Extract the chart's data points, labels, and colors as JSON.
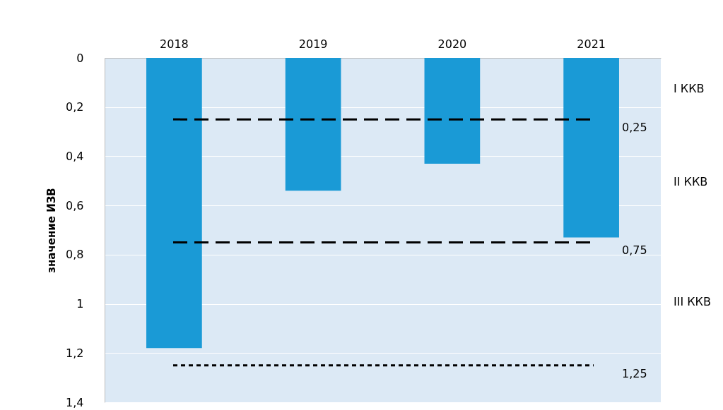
{
  "chart_data": {
    "type": "bar",
    "ylabel": "значение ИЗВ",
    "categories": [
      "2018",
      "2019",
      "2020",
      "2021"
    ],
    "values": [
      1.18,
      0.54,
      0.43,
      0.73
    ],
    "color": "#1a9ad6",
    "ylim": [
      1.4,
      0
    ],
    "yticks": [
      0,
      {
        "value": 0.2,
        "label": "0,2"
      },
      {
        "value": 0.4,
        "label": "0,4"
      },
      {
        "value": 0.6,
        "label": "0,6"
      },
      {
        "value": 0.8,
        "label": "0,8"
      },
      1,
      {
        "value": 1.2,
        "label": "1,2"
      },
      {
        "value": 1.4,
        "label": "1,4"
      }
    ],
    "grid": "y",
    "ref_lines": [
      {
        "axis": "y",
        "value": 0.25,
        "label": "0,25",
        "color": "#000000",
        "line_style": "dashed"
      },
      {
        "axis": "y",
        "value": 0.75,
        "label": "0,75",
        "color": "#000000",
        "line_style": "dashed"
      },
      {
        "axis": "y",
        "value": 1.25,
        "label": "1,25",
        "color": "#000000",
        "line_style": "dotted"
      }
    ],
    "annotations": [
      "I ККВ",
      "II ККВ",
      "III ККВ"
    ]
  }
}
